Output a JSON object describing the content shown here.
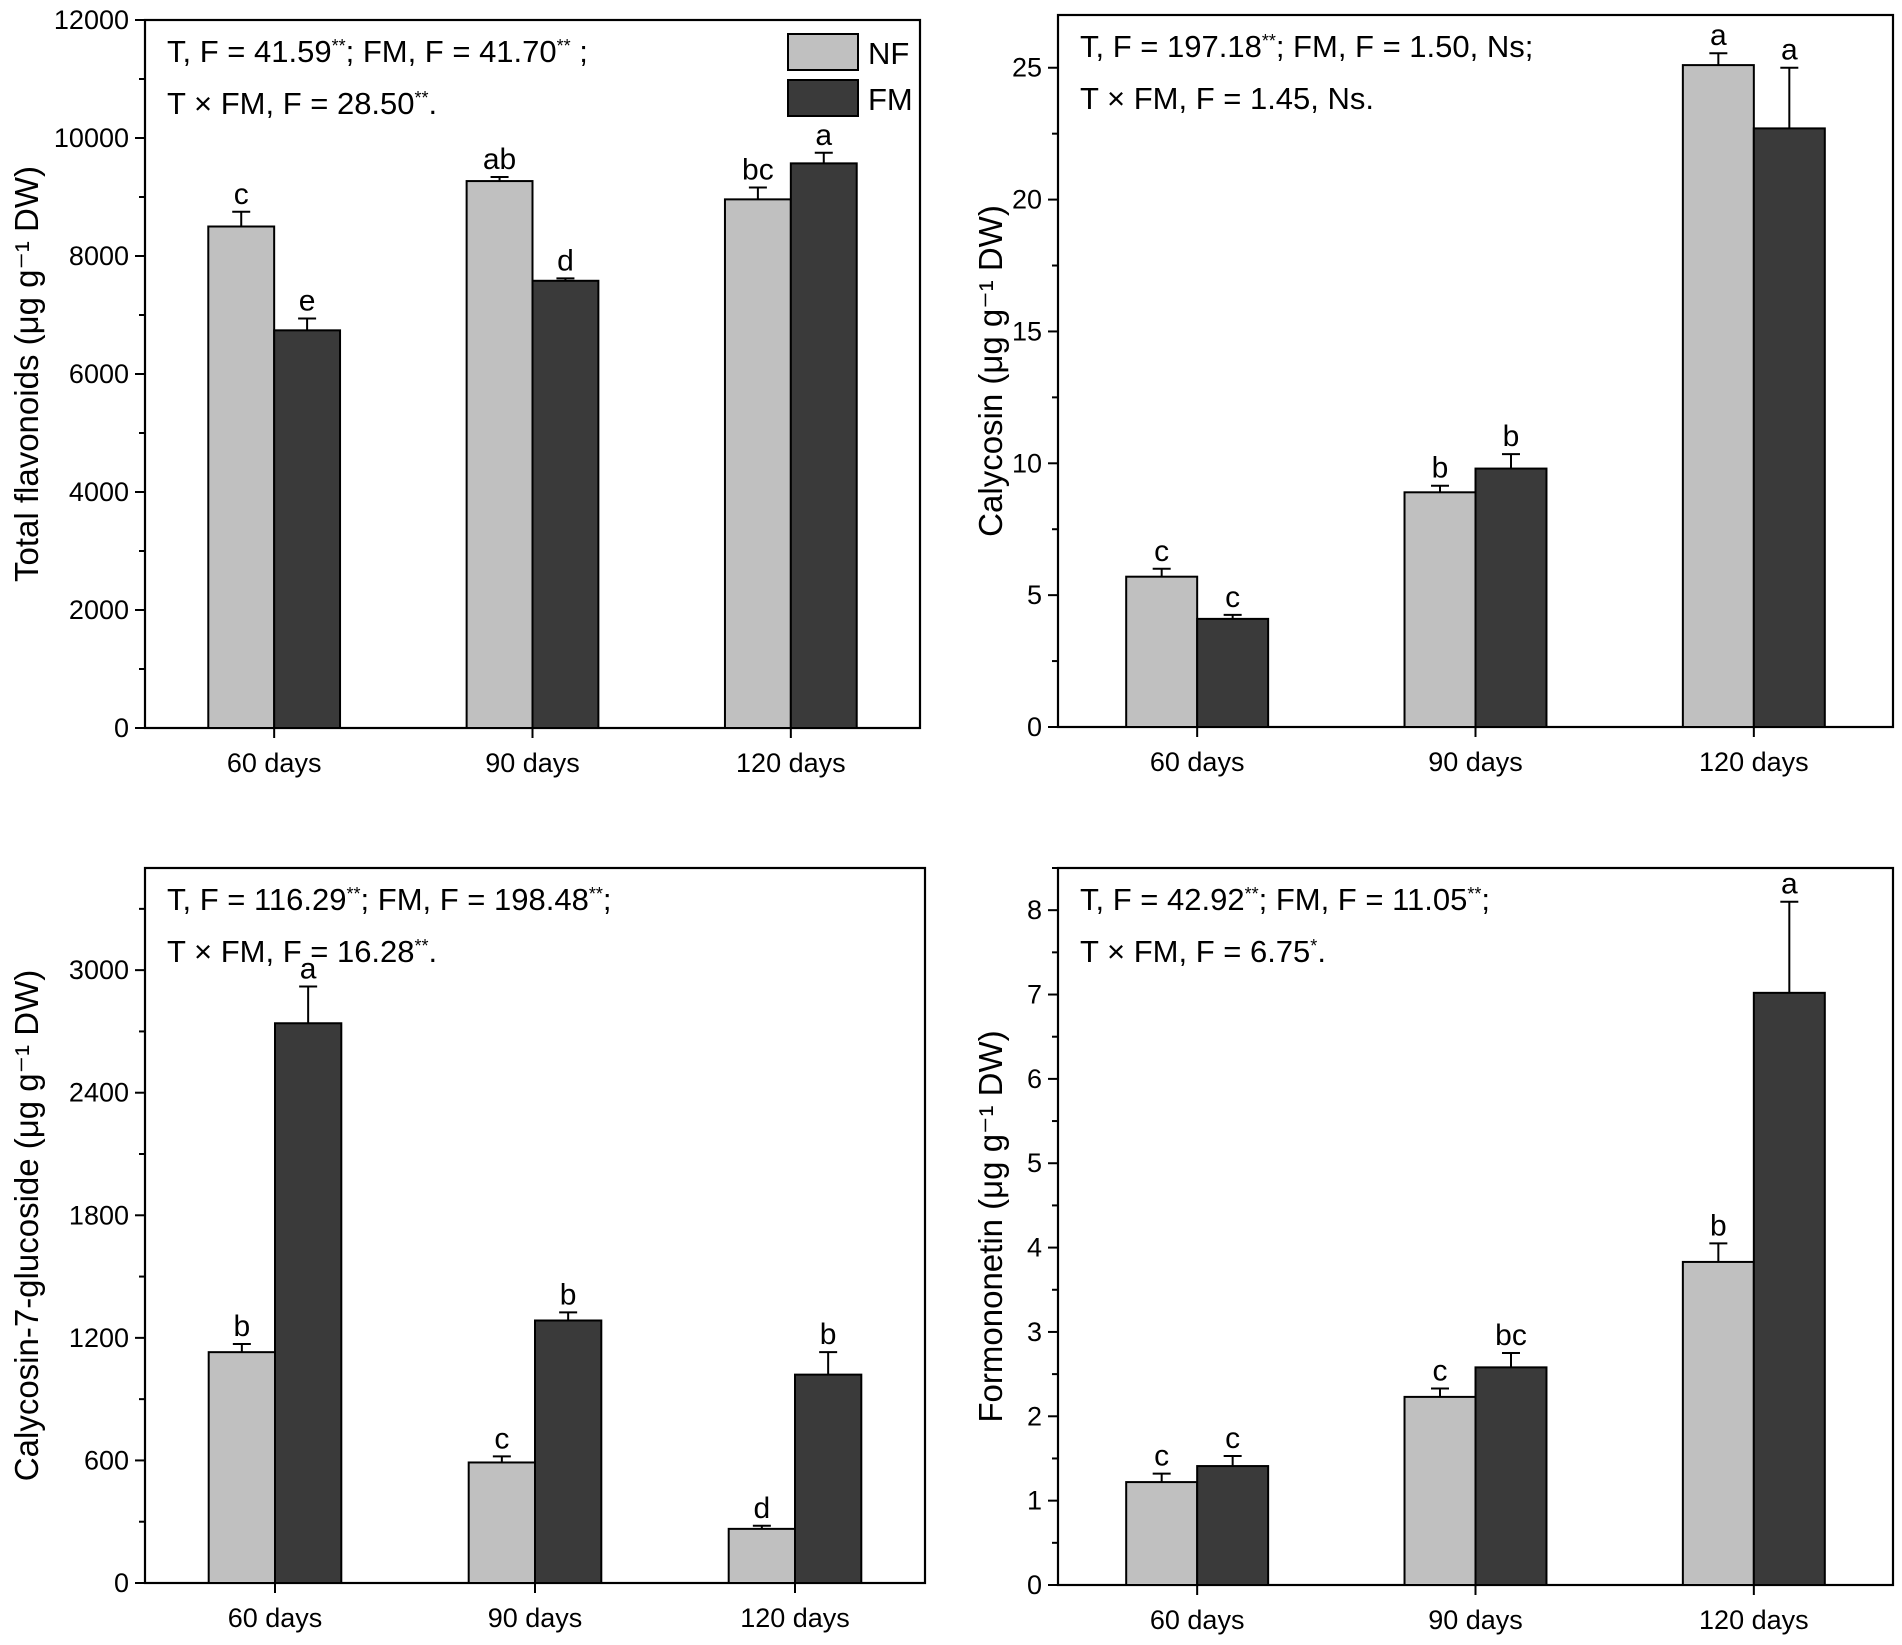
{
  "colors": {
    "NF": "#c0c0c0",
    "FM": "#3a3a3a"
  },
  "legend": {
    "items": [
      "NF",
      "FM"
    ]
  },
  "chart_data": [
    {
      "id": "total-flavonoids",
      "type": "bar",
      "categories": [
        "60 days",
        "90 days",
        "120 days"
      ],
      "series": [
        {
          "name": "NF",
          "values": [
            8500,
            9270,
            8960
          ],
          "errors": [
            250,
            70,
            200
          ],
          "letters": [
            "c",
            "ab",
            "bc"
          ]
        },
        {
          "name": "FM",
          "values": [
            6740,
            7580,
            9570
          ],
          "errors": [
            200,
            40,
            180
          ],
          "letters": [
            "e",
            "d",
            "a"
          ]
        }
      ],
      "ylabel": "Total flavonoids (μg g⁻¹ DW)",
      "ylim": [
        0,
        12000
      ],
      "yticks": [
        0,
        2000,
        4000,
        6000,
        8000,
        10000,
        12000
      ],
      "annotation": [
        "T, F = 41.59**; FM, F = 41.70** ;",
        "T × FM, F = 28.50**."
      ],
      "legend": true
    },
    {
      "id": "calycosin",
      "type": "bar",
      "categories": [
        "60 days",
        "90 days",
        "120 days"
      ],
      "series": [
        {
          "name": "NF",
          "values": [
            5.7,
            8.9,
            25.1
          ],
          "errors": [
            0.3,
            0.25,
            0.45
          ],
          "letters": [
            "c",
            "b",
            "a"
          ]
        },
        {
          "name": "FM",
          "values": [
            4.1,
            9.8,
            22.7
          ],
          "errors": [
            0.15,
            0.55,
            2.3
          ],
          "letters": [
            "c",
            "b",
            "a"
          ]
        }
      ],
      "ylabel": "Calycosin (μg g⁻¹ DW)",
      "ylim": [
        0,
        27
      ],
      "yticks": [
        0,
        5,
        10,
        15,
        20,
        25
      ],
      "annotation": [
        "T, F = 197.18**; FM, F = 1.50, Ns;",
        "T × FM, F = 1.45, Ns."
      ],
      "legend": false
    },
    {
      "id": "calycosin-7-glucoside",
      "type": "bar",
      "categories": [
        "60 days",
        "90 days",
        "120 days"
      ],
      "series": [
        {
          "name": "NF",
          "values": [
            1130,
            590,
            265
          ],
          "errors": [
            40,
            30,
            15
          ],
          "letters": [
            "b",
            "c",
            "d"
          ]
        },
        {
          "name": "FM",
          "values": [
            2740,
            1285,
            1020
          ],
          "errors": [
            180,
            40,
            110
          ],
          "letters": [
            "a",
            "b",
            "b"
          ]
        }
      ],
      "ylabel": "Calycosin-7-glucoside (μg g⁻¹ DW)",
      "ylim": [
        0,
        3500
      ],
      "yticks": [
        0,
        600,
        1200,
        1800,
        2400,
        3000
      ],
      "annotation": [
        "T, F = 116.29**; FM, F = 198.48**;",
        "T × FM, F = 16.28**."
      ],
      "legend": false
    },
    {
      "id": "formononetin",
      "type": "bar",
      "categories": [
        "60 days",
        "90 days",
        "120 days"
      ],
      "series": [
        {
          "name": "NF",
          "values": [
            1.22,
            2.23,
            3.83
          ],
          "errors": [
            0.1,
            0.1,
            0.22
          ],
          "letters": [
            "c",
            "c",
            "b"
          ]
        },
        {
          "name": "FM",
          "values": [
            1.41,
            2.58,
            7.02
          ],
          "errors": [
            0.12,
            0.17,
            1.08
          ],
          "letters": [
            "c",
            "bc",
            "a"
          ]
        }
      ],
      "ylabel": "Formononetin (μg g⁻¹ DW)",
      "ylim": [
        0,
        8.5
      ],
      "yticks": [
        0,
        1,
        2,
        3,
        4,
        5,
        6,
        7,
        8
      ],
      "annotation": [
        "T, F = 42.92**; FM, F = 11.05**;",
        "T × FM, F = 6.75*."
      ],
      "legend": false
    }
  ]
}
